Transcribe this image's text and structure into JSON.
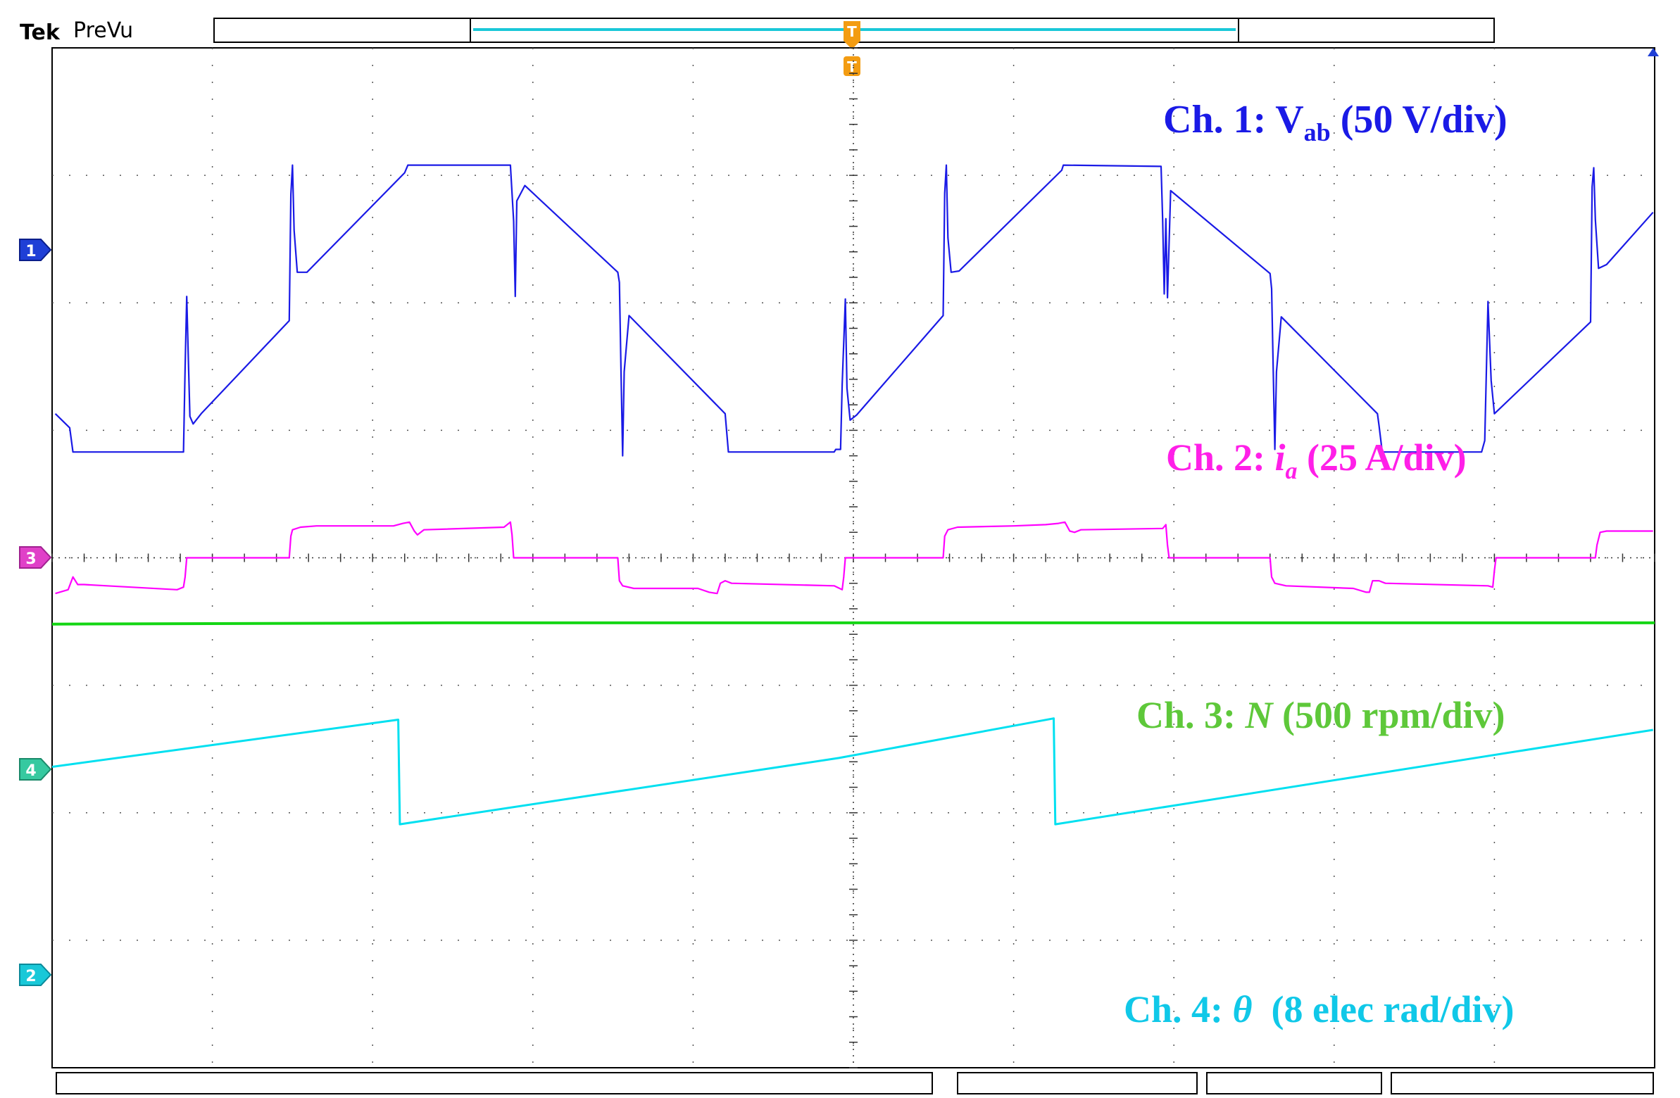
{
  "header": {
    "brand": "Tek",
    "mode": "PreVu"
  },
  "trigger": {
    "position_marker": "T",
    "top_marker": "T"
  },
  "channel_markers": [
    {
      "text": "1",
      "color": "#1f3fd6"
    },
    {
      "text": "3",
      "color": "#e040c8"
    },
    {
      "text": "4",
      "color": "#36c9a0"
    },
    {
      "text": "2",
      "color": "#19c8d8"
    }
  ],
  "colors": {
    "ch1": "#1a1ae6",
    "ch2": "#ff00ff",
    "ch3": "#14d614",
    "ch4": "#00e0f0",
    "ch1_label": "#1a1ae6",
    "ch2_label": "#ff1fe8",
    "ch3_label": "#5ec83a",
    "ch4_label": "#10c8e8",
    "trigger": "#f39c12",
    "grid": "#000000"
  },
  "labels": {
    "ch1": {
      "prefix": "Ch. 1: V",
      "sub": "ab",
      "suffix": " (50 V/div)"
    },
    "ch2": {
      "prefix": "Ch. 2: ",
      "italic": "i",
      "sub": "a",
      "suffix": " (25 A/div)"
    },
    "ch3": {
      "prefix": "Ch. 3: ",
      "italic": "N",
      "suffix": " (500 rpm/div)"
    },
    "ch4": {
      "prefix": "Ch. 4: ",
      "italic": "θ",
      "suffix": "  (8 elec rad/div)"
    }
  },
  "chart_data": {
    "type": "line",
    "title": "",
    "xlabel": "",
    "ylabel": "",
    "grid": true,
    "xlim": [
      0,
      10
    ],
    "ylim": [
      -4,
      4
    ],
    "x_unit": "div",
    "y_unit": "div",
    "series": [
      {
        "name": "Ch. 1: Vab (50 V/div)",
        "color": "#1a1ae6",
        "points": [
          [
            0.02,
            1.13
          ],
          [
            0.11,
            1.02
          ],
          [
            0.13,
            0.83
          ],
          [
            0.82,
            0.83
          ],
          [
            0.83,
            1.49
          ],
          [
            0.84,
            2.05
          ],
          [
            0.85,
            1.56
          ],
          [
            0.86,
            1.11
          ],
          [
            0.88,
            1.05
          ],
          [
            0.93,
            1.13
          ],
          [
            1.48,
            1.86
          ],
          [
            1.49,
            2.85
          ],
          [
            1.5,
            3.08
          ],
          [
            1.51,
            2.57
          ],
          [
            1.53,
            2.24
          ],
          [
            1.59,
            2.24
          ],
          [
            2.2,
            3.02
          ],
          [
            2.22,
            3.08
          ],
          [
            2.84,
            3.08
          ],
          [
            2.86,
            3.08
          ],
          [
            2.88,
            2.64
          ],
          [
            2.89,
            2.05
          ],
          [
            2.9,
            2.8
          ],
          [
            2.95,
            2.92
          ],
          [
            3.53,
            2.24
          ],
          [
            3.54,
            2.16
          ],
          [
            3.55,
            1.46
          ],
          [
            3.56,
            0.8
          ],
          [
            3.57,
            1.46
          ],
          [
            3.6,
            1.9
          ],
          [
            4.2,
            1.13
          ],
          [
            4.21,
            0.98
          ],
          [
            4.22,
            0.83
          ],
          [
            4.88,
            0.83
          ],
          [
            4.89,
            0.85
          ],
          [
            4.92,
            0.85
          ],
          [
            4.93,
            1.36
          ],
          [
            4.95,
            2.03
          ],
          [
            4.96,
            1.33
          ],
          [
            4.98,
            1.08
          ],
          [
            5.02,
            1.12
          ],
          [
            5.56,
            1.9
          ],
          [
            5.57,
            2.86
          ],
          [
            5.58,
            3.08
          ],
          [
            5.59,
            2.51
          ],
          [
            5.61,
            2.24
          ],
          [
            5.66,
            2.25
          ],
          [
            6.3,
            3.04
          ],
          [
            6.31,
            3.08
          ],
          [
            6.92,
            3.07
          ],
          [
            6.93,
            2.64
          ],
          [
            6.94,
            2.07
          ],
          [
            6.95,
            2.66
          ],
          [
            6.96,
            2.04
          ],
          [
            6.98,
            2.88
          ],
          [
            7.6,
            2.23
          ],
          [
            7.61,
            2.11
          ],
          [
            7.62,
            1.47
          ],
          [
            7.63,
            0.85
          ],
          [
            7.64,
            1.46
          ],
          [
            7.67,
            1.89
          ],
          [
            8.27,
            1.13
          ],
          [
            8.28,
            1.04
          ],
          [
            8.3,
            0.83
          ],
          [
            8.92,
            0.83
          ],
          [
            8.94,
            0.92
          ],
          [
            8.96,
            2.01
          ],
          [
            8.98,
            1.39
          ],
          [
            9.0,
            1.13
          ],
          [
            9.6,
            1.85
          ],
          [
            9.61,
            2.91
          ],
          [
            9.62,
            3.06
          ],
          [
            9.63,
            2.65
          ],
          [
            9.65,
            2.27
          ],
          [
            9.7,
            2.3
          ],
          [
            9.99,
            2.71
          ]
        ]
      },
      {
        "name": "Ch. 2: ia (25 A/div)",
        "color": "#ff00ff",
        "points": [
          [
            0.02,
            -0.28
          ],
          [
            0.1,
            -0.25
          ],
          [
            0.13,
            -0.15
          ],
          [
            0.16,
            -0.21
          ],
          [
            0.2,
            -0.21
          ],
          [
            0.78,
            -0.25
          ],
          [
            0.82,
            -0.23
          ],
          [
            0.83,
            -0.15
          ],
          [
            0.84,
            0.0
          ],
          [
            0.85,
            0.0
          ],
          [
            1.48,
            0.0
          ],
          [
            1.49,
            0.17
          ],
          [
            1.5,
            0.22
          ],
          [
            1.55,
            0.24
          ],
          [
            1.65,
            0.25
          ],
          [
            2.13,
            0.25
          ],
          [
            2.19,
            0.27
          ],
          [
            2.23,
            0.28
          ],
          [
            2.26,
            0.21
          ],
          [
            2.28,
            0.18
          ],
          [
            2.32,
            0.22
          ],
          [
            2.82,
            0.24
          ],
          [
            2.86,
            0.28
          ],
          [
            2.87,
            0.18
          ],
          [
            2.88,
            0.0
          ],
          [
            3.53,
            0.0
          ],
          [
            3.54,
            -0.18
          ],
          [
            3.56,
            -0.22
          ],
          [
            3.63,
            -0.24
          ],
          [
            4.03,
            -0.24
          ],
          [
            4.1,
            -0.27
          ],
          [
            4.15,
            -0.28
          ],
          [
            4.17,
            -0.2
          ],
          [
            4.2,
            -0.18
          ],
          [
            4.24,
            -0.2
          ],
          [
            4.88,
            -0.22
          ],
          [
            4.93,
            -0.25
          ],
          [
            4.94,
            -0.15
          ],
          [
            4.95,
            0.0
          ],
          [
            5.56,
            0.0
          ],
          [
            5.57,
            0.17
          ],
          [
            5.59,
            0.22
          ],
          [
            5.65,
            0.24
          ],
          [
            6.0,
            0.25
          ],
          [
            6.2,
            0.26
          ],
          [
            6.28,
            0.27
          ],
          [
            6.32,
            0.28
          ],
          [
            6.35,
            0.21
          ],
          [
            6.38,
            0.2
          ],
          [
            6.42,
            0.22
          ],
          [
            6.93,
            0.23
          ],
          [
            6.95,
            0.26
          ],
          [
            6.96,
            0.1
          ],
          [
            6.97,
            0.0
          ],
          [
            7.6,
            0.0
          ],
          [
            7.61,
            -0.15
          ],
          [
            7.63,
            -0.2
          ],
          [
            7.7,
            -0.22
          ],
          [
            8.12,
            -0.24
          ],
          [
            8.2,
            -0.27
          ],
          [
            8.22,
            -0.27
          ],
          [
            8.24,
            -0.18
          ],
          [
            8.28,
            -0.18
          ],
          [
            8.32,
            -0.2
          ],
          [
            8.96,
            -0.22
          ],
          [
            8.99,
            -0.23
          ],
          [
            9.0,
            -0.1
          ],
          [
            9.01,
            0.0
          ],
          [
            9.63,
            0.0
          ],
          [
            9.64,
            0.1
          ],
          [
            9.66,
            0.2
          ],
          [
            9.7,
            0.21
          ],
          [
            9.99,
            0.21
          ]
        ]
      },
      {
        "name": "Ch. 3: N (500 rpm/div)",
        "color": "#14d614",
        "points": [
          [
            0.0,
            -0.52
          ],
          [
            2.5,
            -0.51
          ],
          [
            5.0,
            -0.51
          ],
          [
            7.5,
            -0.51
          ],
          [
            10.0,
            -0.51
          ]
        ]
      },
      {
        "name": "Ch. 4: θ (8 elec rad/div)",
        "color": "#00e0f0",
        "points": [
          [
            0.0,
            -1.64
          ],
          [
            2.16,
            -1.27
          ],
          [
            2.17,
            -2.09
          ],
          [
            4.91,
            -1.57
          ],
          [
            6.25,
            -1.26
          ],
          [
            6.26,
            -2.09
          ],
          [
            9.99,
            -1.35
          ]
        ]
      }
    ]
  }
}
